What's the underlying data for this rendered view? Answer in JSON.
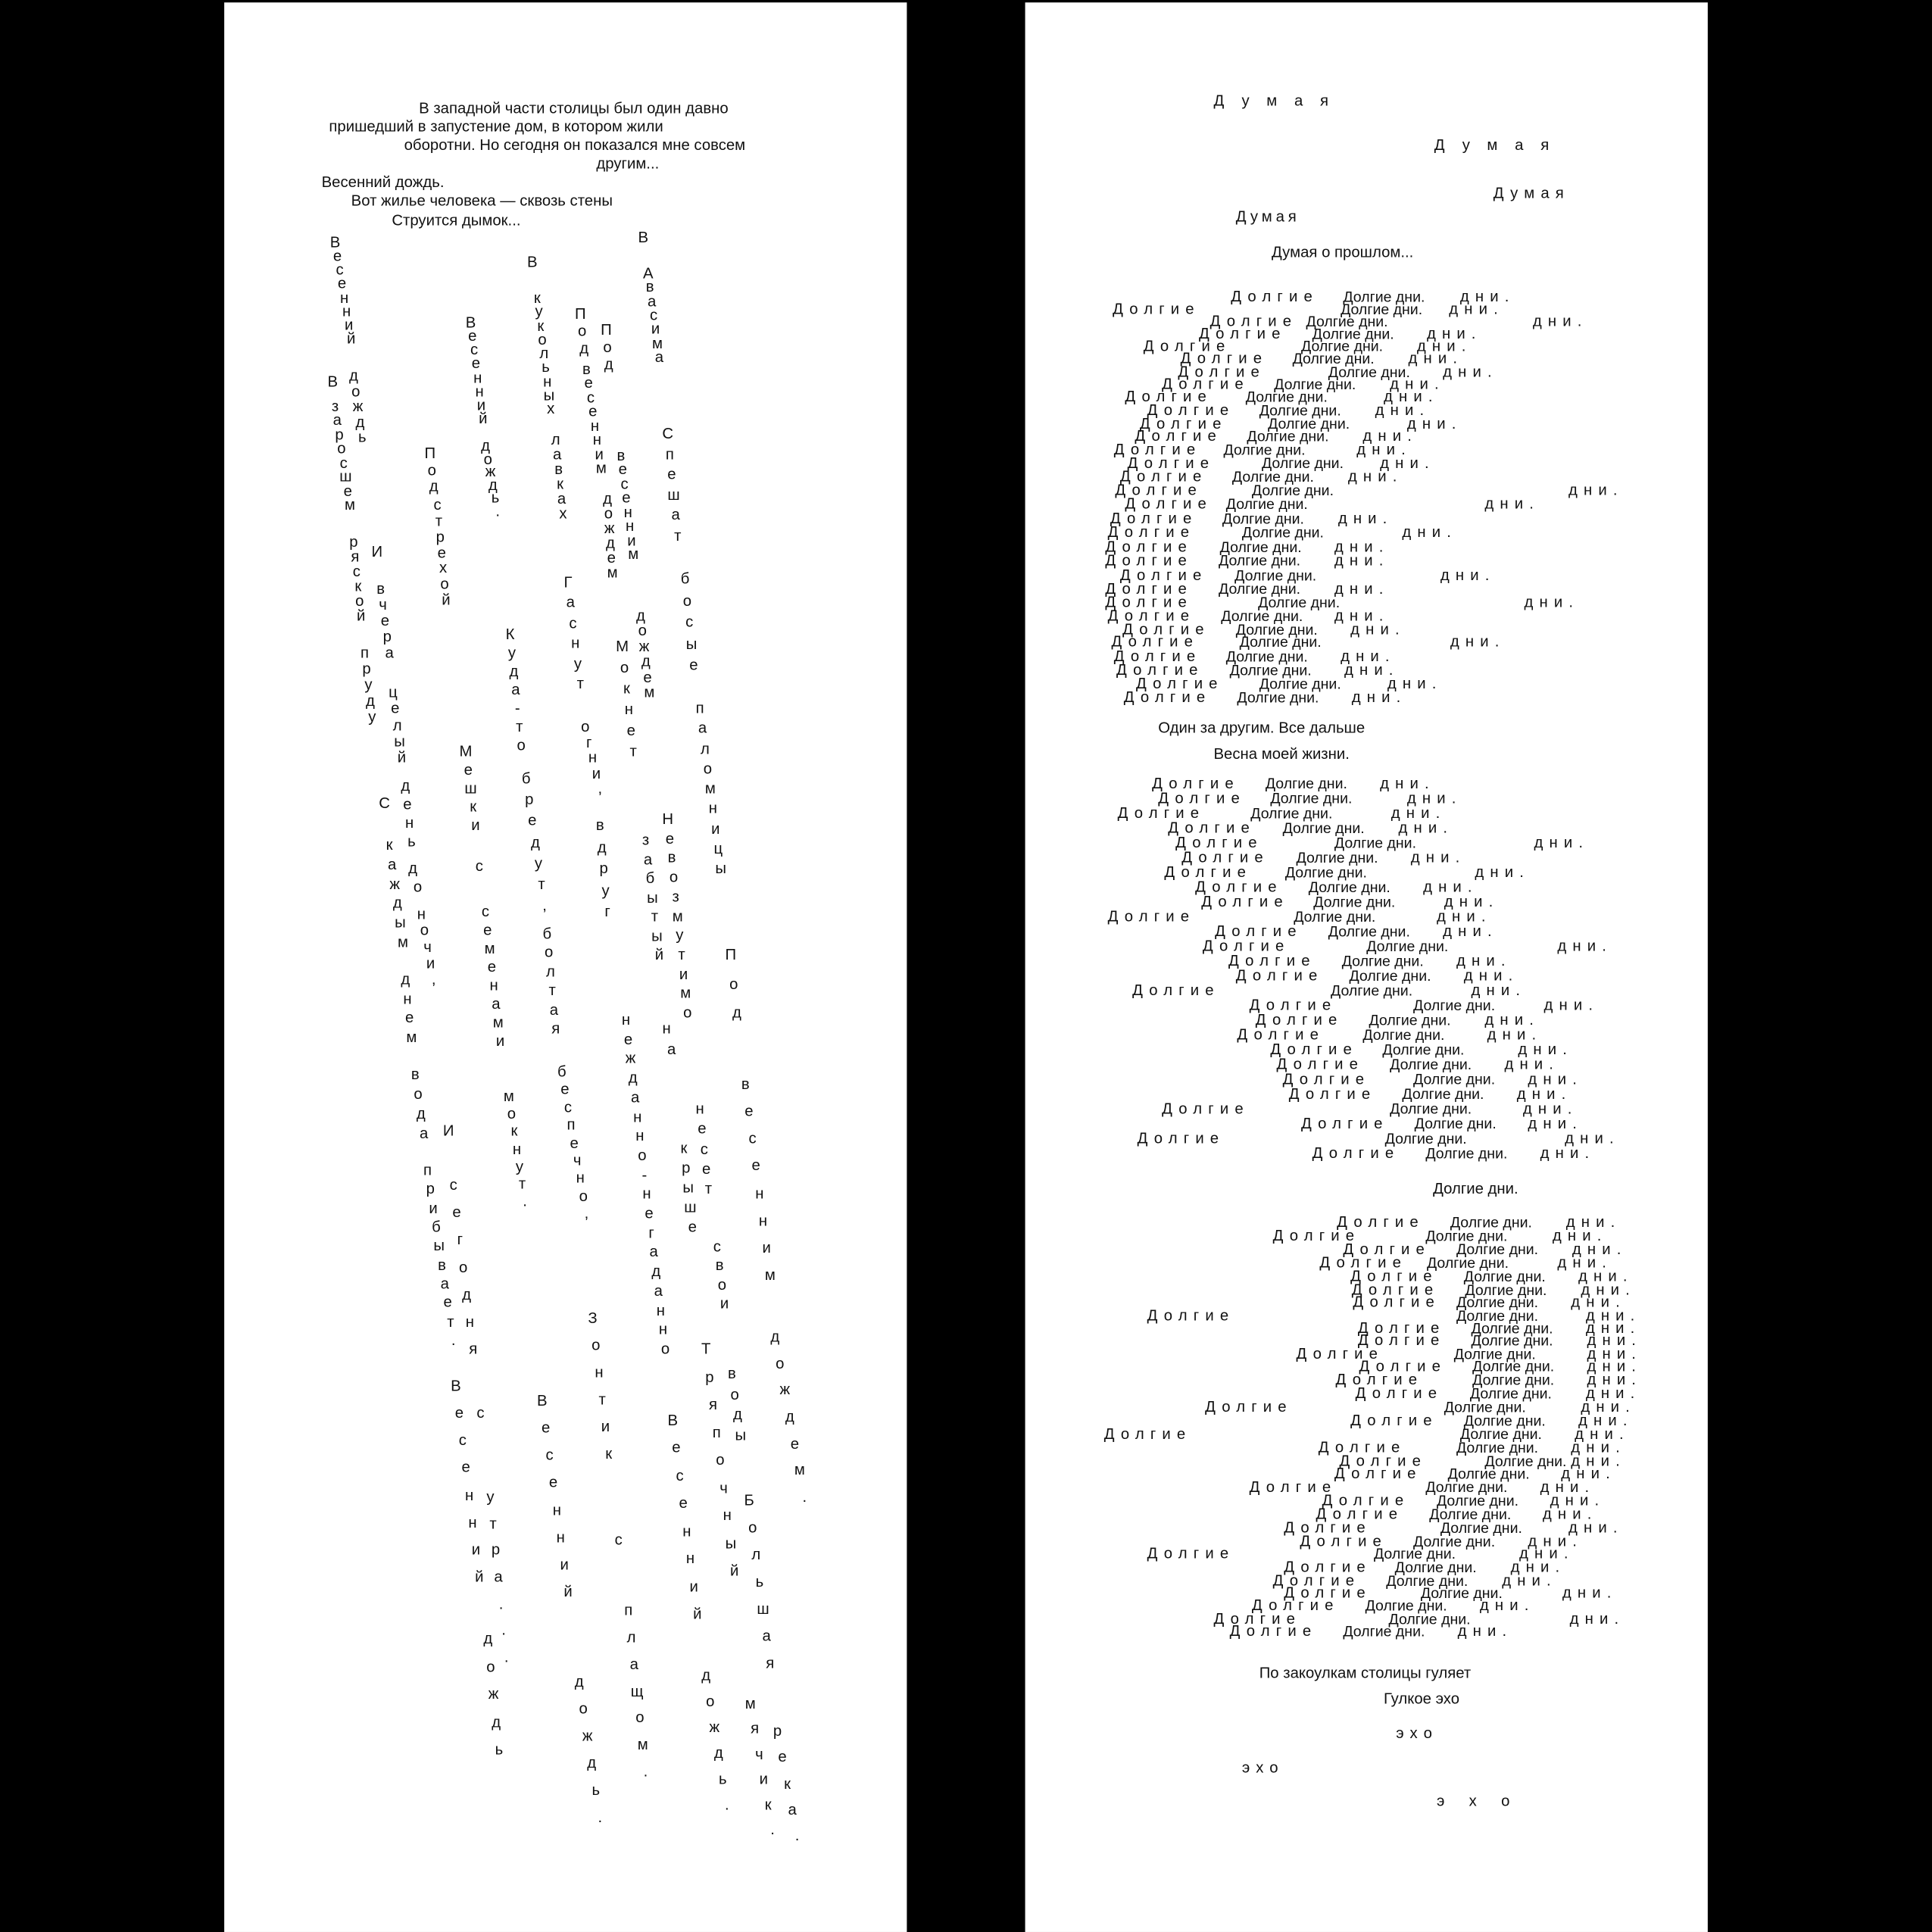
{
  "left": {
    "intro": [
      "В западной части столицы был один давно",
      "пришедший в запустение дом, в котором жили",
      "оборотни. Но сегодня он показался мне совсем",
      "другим..."
    ],
    "haiku": [
      "Весенний дождь.",
      "Вот жилье человека — сквозь стены",
      "Струится дымок..."
    ],
    "rain_words": [
      "Весенний",
      "В",
      "заросшем",
      "дождь",
      "ряской",
      "И",
      "вчера",
      "пруду",
      "целый",
      "день",
      "С",
      "каждым",
      "до",
      "ночи,",
      "днем",
      "вода",
      "И",
      "прибывает.",
      "сегодня",
      "Под",
      "стрехой",
      "Весенний",
      "дождь.",
      "В",
      "кукольных",
      "лавках",
      "Под",
      "весенним",
      "Под",
      "дождем",
      "весенним",
      "В",
      "Авасима",
      "Спешат",
      "босые",
      "дождем",
      "Мокнет",
      "паломницы",
      "Гаснут",
      "огни,",
      "вдруг",
      "Куда-то",
      "бредут,",
      "болтая",
      "беспечно,",
      "Мешки",
      "с",
      "семенами",
      "мокнут.",
      "Невозмутимо",
      "на",
      "забытый",
      "Под",
      "нежданно-негаданно",
      "весенним",
      "несет",
      "крыше",
      "свои",
      "Зонтик",
      "с",
      "плащом.",
      "дождь.",
      "Весенний",
      "Весенний",
      "с",
      "утра...",
      "дождь",
      "Весенний",
      "дождь.",
      "Тряпочный",
      "воды",
      "Большая",
      "мячик.",
      "река.",
      "дождем."
    ]
  },
  "right": {
    "dumaya_1": "Думая",
    "dumaya_2": "Думая",
    "dumaya_3": "Думая",
    "dumaya_4": "Думая",
    "dumaya_past": "Думая о прошлом...",
    "repeat": {
      "dolgie": "Долгие",
      "dolgie_dni": "Долгие дни.",
      "dni": "дни."
    },
    "one_by_one": "Один за другим. Все дальше",
    "spring": "Весна моей жизни.",
    "long_days": "Долгие дни.",
    "alleys": "По закоулкам столицы гуляет",
    "echo_line": "Гулкое эхо",
    "echo_1": "эхо",
    "echo_2": "эхо",
    "echo_3": "эхо"
  }
}
